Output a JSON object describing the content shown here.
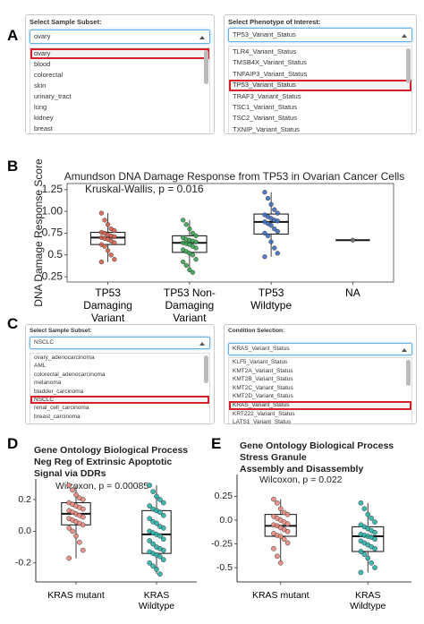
{
  "panel_labels": [
    "A",
    "B",
    "C",
    "D",
    "E"
  ],
  "ui_a": {
    "sample_subset": {
      "label": "Select Sample Subset:",
      "input": "ovary",
      "options": [
        "ovary",
        "blood",
        "colorectal",
        "skin",
        "urinary_tract",
        "lung",
        "kidney",
        "breast"
      ]
    },
    "phenotype": {
      "label": "Select Phenotype of Interest:",
      "input": "TP53_Variant_Status",
      "options": [
        "TLR4_Variant_Status",
        "TMSB4X_Variant_Status",
        "TNFAIP3_Variant_Status",
        "TP53_Variant_Status",
        "TRAF3_Variant_Status",
        "TSC1_Variant_Status",
        "TSC2_Variant_Status",
        "TXNIP_Variant_Status"
      ]
    }
  },
  "ui_c": {
    "sample_subset": {
      "label": "Select Sample Subset:",
      "input": "NSCLC",
      "options": [
        "ovary_adenocarcinoma",
        "AML",
        "colorectal_adenocarcinoma",
        "melanoma",
        "bladder_carcinoma",
        "NSCLC",
        "renal_cell_carcinoma",
        "breast_carcinoma"
      ]
    },
    "condition": {
      "label": "Condition Selection:",
      "input": "KRAS_Variant_Status",
      "options": [
        "KLF5_Variant_Status",
        "KMT2A_Variant_Status",
        "KMT2B_Variant_Status",
        "KMT2C_Variant_Status",
        "KMT2D_Variant_Status",
        "KRAS_Variant_Status",
        "KRT222_Variant_Status",
        "LATS1_Variant_Status"
      ]
    }
  },
  "chart_data": [
    {
      "type": "box",
      "title": "Amundson DNA Damage Response from TP53 in Ovarian Cancer Cells",
      "y_label": "DNA Damage Response Score",
      "annotation": "Kruskal-Wallis, p = 0.016",
      "categories": [
        "TP53 Damaging Variant",
        "TP53 Non-Damaging Variant",
        "TP53 Wildtype",
        "NA"
      ],
      "ylim": [
        0.19,
        1.32
      ],
      "yticks": [
        0.25,
        0.5,
        0.75,
        {
          "value": 1,
          "label": "1.00"
        },
        1.25
      ],
      "boxes": [
        {
          "color": "#d9604c",
          "min": 0.42,
          "q1": 0.62,
          "median": 0.7,
          "q3": 0.76,
          "max": 0.98,
          "points": [
            0.98,
            0.9,
            0.85,
            0.8,
            0.78,
            0.76,
            0.75,
            0.73,
            0.72,
            0.71,
            0.7,
            0.69,
            0.68,
            0.66,
            0.64,
            0.62,
            0.6,
            0.55,
            0.5,
            0.45,
            0.42
          ]
        },
        {
          "color": "#3aa655",
          "min": 0.3,
          "q1": 0.53,
          "median": 0.64,
          "q3": 0.72,
          "max": 0.9,
          "points": [
            0.9,
            0.85,
            0.8,
            0.75,
            0.72,
            0.7,
            0.68,
            0.67,
            0.66,
            0.65,
            0.64,
            0.63,
            0.62,
            0.6,
            0.58,
            0.56,
            0.54,
            0.52,
            0.5,
            0.45,
            0.42,
            0.38,
            0.33,
            0.3
          ]
        },
        {
          "color": "#3f6fc0",
          "min": 0.48,
          "q1": 0.74,
          "median": 0.88,
          "q3": 0.97,
          "max": 1.22,
          "points": [
            1.22,
            1.15,
            1.08,
            1.02,
            0.98,
            0.96,
            0.94,
            0.92,
            0.9,
            0.89,
            0.88,
            0.86,
            0.84,
            0.8,
            0.77,
            0.75,
            0.72,
            0.65,
            0.58,
            0.52,
            0.48
          ]
        },
        {
          "color": "#777777",
          "min": 0.67,
          "q1": 0.67,
          "median": 0.67,
          "q3": 0.67,
          "max": 0.67,
          "points": [
            0.67
          ]
        }
      ]
    },
    {
      "type": "box",
      "title": [
        "Gene Ontology Biological Process",
        "Neg Reg of Extrinsic Apoptotic",
        "Signal via DDRs"
      ],
      "annotation": "Wilcoxon, p = 0.00085",
      "categories": [
        "KRAS mutant",
        "KRAS Wildtype"
      ],
      "ylim": [
        -0.32,
        0.33
      ],
      "yticks": [
        -0.2,
        {
          "value": 0,
          "label": "0.0"
        },
        0.2
      ],
      "boxes": [
        {
          "color": "#e9897e",
          "min": -0.17,
          "q1": 0.04,
          "median": 0.11,
          "q3": 0.18,
          "max": 0.29,
          "points": [
            0.29,
            0.26,
            0.23,
            0.21,
            0.2,
            0.18,
            0.17,
            0.16,
            0.15,
            0.14,
            0.13,
            0.12,
            0.11,
            0.1,
            0.09,
            0.08,
            0.07,
            0.06,
            0.05,
            0.04,
            0.02,
            0.0,
            -0.03,
            -0.07,
            -0.12,
            -0.17
          ]
        },
        {
          "color": "#2bb3a8",
          "min": -0.27,
          "q1": -0.14,
          "median": -0.02,
          "q3": 0.13,
          "max": 0.29,
          "points": [
            0.29,
            0.25,
            0.22,
            0.2,
            0.18,
            0.16,
            0.14,
            0.13,
            0.12,
            0.1,
            0.08,
            0.06,
            0.05,
            0.03,
            0.02,
            0.0,
            -0.01,
            -0.02,
            -0.03,
            -0.05,
            -0.06,
            -0.08,
            -0.1,
            -0.11,
            -0.12,
            -0.13,
            -0.14,
            -0.15,
            -0.16,
            -0.18,
            -0.2,
            -0.22,
            -0.24,
            -0.27
          ]
        }
      ]
    },
    {
      "type": "box",
      "title": [
        "Gene Ontology Biological Process",
        "Stress Granule",
        "Assembly and Disassembly"
      ],
      "annotation": "Wilcoxon, p = 0.022",
      "categories": [
        "KRAS mutant",
        "KRAS Wildtype"
      ],
      "ylim": [
        -0.65,
        0.48
      ],
      "yticks": [
        {
          "value": -0.5,
          "label": "-0.5"
        },
        -0.25,
        {
          "value": 0,
          "label": "0.0"
        },
        0.25
      ],
      "boxes": [
        {
          "color": "#e9897e",
          "min": -0.45,
          "q1": -0.17,
          "median": -0.06,
          "q3": 0.06,
          "max": 0.22,
          "points": [
            0.22,
            0.18,
            0.12,
            0.08,
            0.06,
            0.04,
            0.02,
            0.0,
            -0.02,
            -0.04,
            -0.05,
            -0.06,
            -0.08,
            -0.1,
            -0.12,
            -0.14,
            -0.16,
            -0.17,
            -0.2,
            -0.24,
            -0.3,
            -0.38,
            -0.45
          ]
        },
        {
          "color": "#2bb3a8",
          "min": -0.55,
          "q1": -0.33,
          "median": -0.17,
          "q3": -0.07,
          "max": 0.18,
          "points": [
            0.18,
            0.12,
            0.06,
            0.02,
            -0.02,
            -0.05,
            -0.07,
            -0.09,
            -0.11,
            -0.13,
            -0.15,
            -0.16,
            -0.17,
            -0.18,
            -0.2,
            -0.22,
            -0.24,
            -0.26,
            -0.28,
            -0.3,
            -0.33,
            -0.36,
            -0.4,
            -0.45,
            -0.5,
            -0.55
          ]
        }
      ]
    }
  ]
}
